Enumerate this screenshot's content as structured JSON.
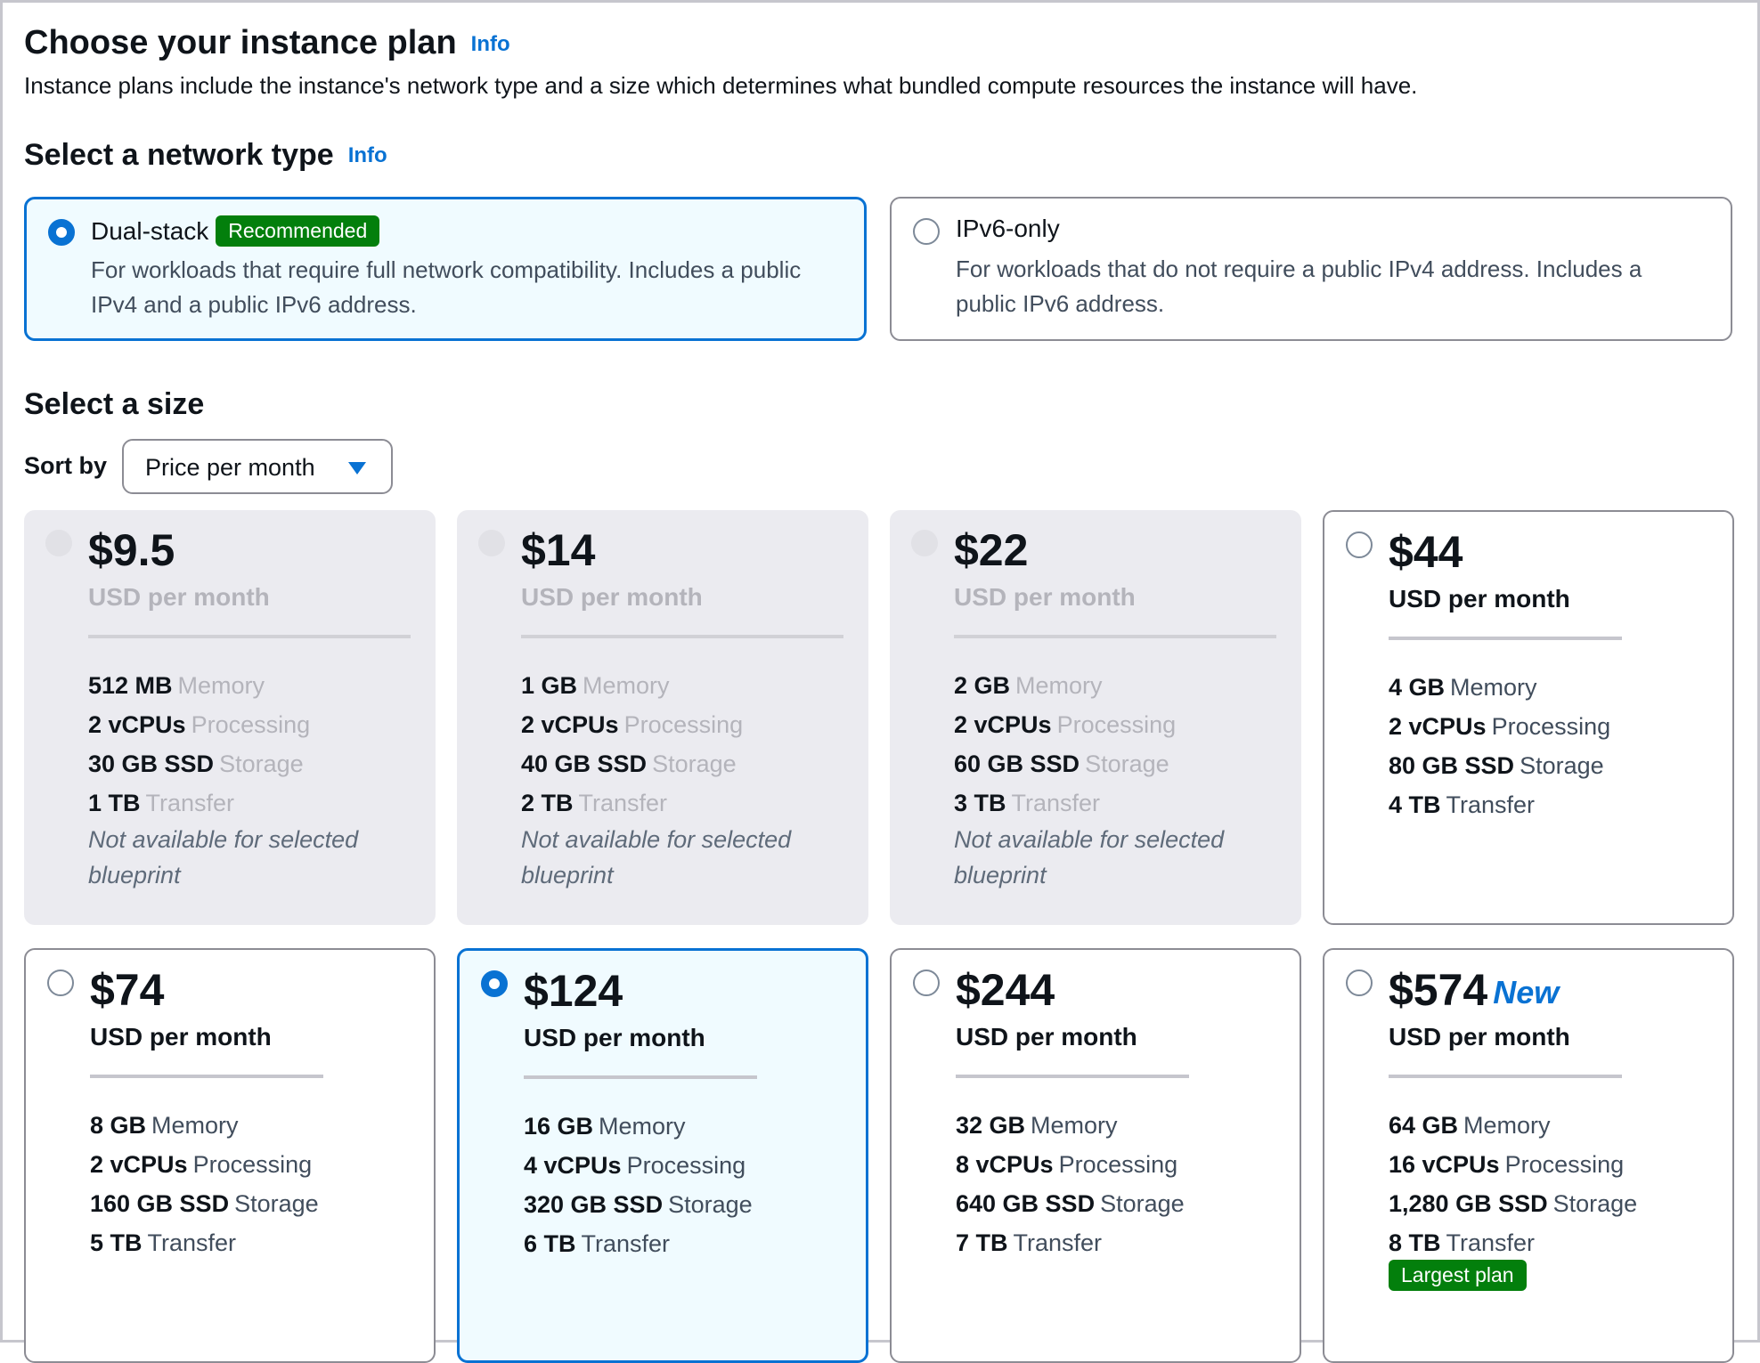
{
  "header": {
    "title": "Choose your instance plan",
    "info": "Info",
    "description": "Instance plans include the instance's network type and a size which determines what bundled compute resources the instance will have."
  },
  "network": {
    "title": "Select a network type",
    "info": "Info",
    "options": [
      {
        "label": "Dual-stack",
        "badge": "Recommended",
        "description": "For workloads that require full network compatibility. Includes a public IPv4 and a public IPv6 address.",
        "selected": true
      },
      {
        "label": "IPv6-only",
        "description": "For workloads that do not require a public IPv4 address. Includes a public IPv6 address.",
        "selected": false
      }
    ]
  },
  "size": {
    "title": "Select a size",
    "sort_label": "Sort by",
    "sort_value": "Price per month",
    "unit": "USD per month",
    "unavailable_note": "Not available for selected blueprint",
    "spec_labels": {
      "memory": "Memory",
      "processing": "Processing",
      "storage": "Storage",
      "transfer": "Transfer"
    },
    "plans": [
      {
        "price": "$9.5",
        "memory": "512 MB",
        "vcpus": "2 vCPUs",
        "storage": "30 GB SSD",
        "transfer": "1 TB",
        "state": "disabled"
      },
      {
        "price": "$14",
        "memory": "1 GB",
        "vcpus": "2 vCPUs",
        "storage": "40 GB SSD",
        "transfer": "2 TB",
        "state": "disabled"
      },
      {
        "price": "$22",
        "memory": "2 GB",
        "vcpus": "2 vCPUs",
        "storage": "60 GB SSD",
        "transfer": "3 TB",
        "state": "disabled"
      },
      {
        "price": "$44",
        "memory": "4 GB",
        "vcpus": "2 vCPUs",
        "storage": "80 GB SSD",
        "transfer": "4 TB",
        "state": "available"
      },
      {
        "price": "$74",
        "memory": "8 GB",
        "vcpus": "2 vCPUs",
        "storage": "160 GB SSD",
        "transfer": "5 TB",
        "state": "available"
      },
      {
        "price": "$124",
        "memory": "16 GB",
        "vcpus": "4 vCPUs",
        "storage": "320 GB SSD",
        "transfer": "6 TB",
        "state": "selected"
      },
      {
        "price": "$244",
        "memory": "32 GB",
        "vcpus": "8 vCPUs",
        "storage": "640 GB SSD",
        "transfer": "7 TB",
        "state": "available"
      },
      {
        "price": "$574",
        "tag": "New",
        "memory": "64 GB",
        "vcpus": "16 vCPUs",
        "storage": "1,280 GB SSD",
        "transfer": "8 TB",
        "badge": "Largest plan",
        "state": "available"
      }
    ]
  },
  "colors": {
    "accent": "#0972d3",
    "success_badge": "#037f0c",
    "selected_bg": "#f0fbff",
    "disabled_bg": "#ebebf0"
  }
}
